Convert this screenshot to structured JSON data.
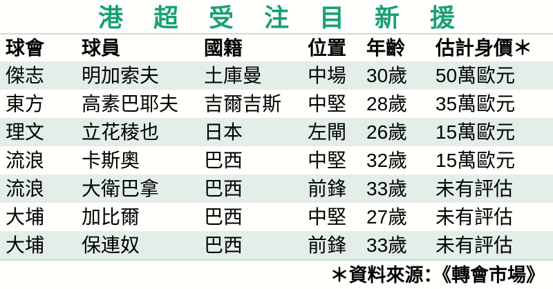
{
  "title": "港 超 受 注 目 新 援",
  "table": {
    "headers": [
      "球會",
      "球員",
      "國籍",
      "位置",
      "年齡",
      "估計身價＊"
    ],
    "rows": [
      [
        "傑志",
        "明加索夫",
        "土庫曼",
        "中場",
        "30歲",
        "50萬歐元"
      ],
      [
        "東方",
        "高素巴耶夫",
        "吉爾吉斯",
        "中堅",
        "28歲",
        "35萬歐元"
      ],
      [
        "理文",
        "立花稜也",
        "日本",
        "左閘",
        "26歲",
        "15萬歐元"
      ],
      [
        "流浪",
        "卡斯奧",
        "巴西",
        "中堅",
        "32歲",
        "15萬歐元"
      ],
      [
        "流浪",
        "大衛巴拿",
        "巴西",
        "前鋒",
        "33歲",
        "未有評估"
      ],
      [
        "大埔",
        "加比爾",
        "巴西",
        "中堅",
        "27歲",
        "未有評估"
      ],
      [
        "大埔",
        "保連奴",
        "巴西",
        "前鋒",
        "33歲",
        "未有評估"
      ]
    ]
  },
  "footer": {
    "source_note": "＊資料來源：《轉會市場》"
  },
  "colors": {
    "title_text": "#18a077",
    "title_divider": "#c6ddd3",
    "row_alt_background": "#e3eee9",
    "table_bottom_border": "#c9dad1",
    "body_text": "#000000",
    "page_background": "#fffffb"
  },
  "chart_data": {
    "type": "table",
    "title": "港超受注目新援",
    "columns": [
      "球會",
      "球員",
      "國籍",
      "位置",
      "年齡",
      "估計身價"
    ],
    "rows": [
      {
        "club": "傑志",
        "player": "明加索夫",
        "nationality": "土庫曼",
        "position": "中場",
        "age": 30,
        "value": "50萬歐元"
      },
      {
        "club": "東方",
        "player": "高素巴耶夫",
        "nationality": "吉爾吉斯",
        "position": "中堅",
        "age": 28,
        "value": "35萬歐元"
      },
      {
        "club": "理文",
        "player": "立花稜也",
        "nationality": "日本",
        "position": "左閘",
        "age": 26,
        "value": "15萬歐元"
      },
      {
        "club": "流浪",
        "player": "卡斯奧",
        "nationality": "巴西",
        "position": "中堅",
        "age": 32,
        "value": "15萬歐元"
      },
      {
        "club": "流浪",
        "player": "大衛巴拿",
        "nationality": "巴西",
        "position": "前鋒",
        "age": 33,
        "value": "未有評估"
      },
      {
        "club": "大埔",
        "player": "加比爾",
        "nationality": "巴西",
        "position": "中堅",
        "age": 27,
        "value": "未有評估"
      },
      {
        "club": "大埔",
        "player": "保連奴",
        "nationality": "巴西",
        "position": "前鋒",
        "age": 33,
        "value": "未有評估"
      }
    ],
    "source_note": "資料來源：《轉會市場》",
    "layout_hints": {
      "striped_rows": "odd rows (1,3,5,7) mint green",
      "source_note_position": "bottom-right"
    }
  }
}
